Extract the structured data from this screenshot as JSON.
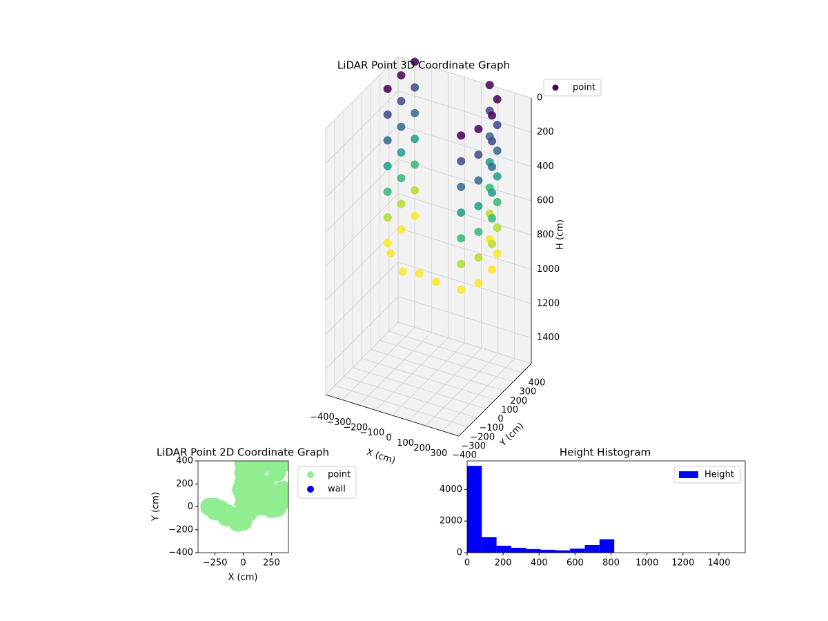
{
  "chart_data": [
    {
      "type": "scatter3d",
      "title": "LiDAR Point 3D Coordinate Graph",
      "x_label": "X (cm)",
      "y_label": "Y (cm)",
      "z_label": "H (cm)",
      "colormap": "viridis",
      "z_inverted": true,
      "legend": "upper right",
      "xlim": [
        -400,
        400
      ],
      "ylim": [
        -400,
        400
      ],
      "zlim": [
        0,
        1550
      ],
      "xticks": [
        {
          "value": -400,
          "label": "−400"
        },
        {
          "value": -300,
          "label": "−300"
        },
        {
          "value": -200,
          "label": "−200"
        },
        {
          "value": -100,
          "label": "−100"
        },
        0,
        100,
        200,
        300
      ],
      "yticks": [
        {
          "value": -400,
          "label": "−400"
        },
        {
          "value": -300,
          "label": "−300"
        },
        {
          "value": -200,
          "label": "−200"
        },
        {
          "value": -100,
          "label": "−100"
        },
        0,
        100,
        200,
        300,
        400
      ],
      "zticks": [
        0,
        200,
        400,
        600,
        800,
        1000,
        1200,
        1400
      ],
      "series": [
        {
          "name": "point",
          "color": "#440154",
          "x": [
            -300,
            -300,
            -300,
            -300,
            -300,
            -300,
            -300,
            -300,
            -300,
            -300,
            -300,
            -300,
            -300,
            -300,
            -300,
            -300,
            -300,
            -300,
            -300,
            -300,
            -300,
            150,
            150,
            150,
            150,
            150,
            150,
            150,
            250,
            250,
            250,
            250,
            250,
            250,
            250,
            300,
            300,
            300,
            300,
            300,
            300,
            300,
            300,
            300,
            300,
            300,
            300,
            300,
            300,
            250,
            250,
            250,
            250,
            250,
            250,
            250,
            -200,
            -100,
            0,
            100
          ],
          "y": [
            100,
            100,
            100,
            100,
            100,
            100,
            100,
            250,
            250,
            250,
            250,
            250,
            250,
            250,
            400,
            400,
            400,
            400,
            400,
            400,
            400,
            400,
            400,
            400,
            400,
            400,
            400,
            400,
            300,
            300,
            300,
            300,
            300,
            300,
            300,
            150,
            150,
            150,
            150,
            150,
            150,
            150,
            0,
            0,
            0,
            0,
            0,
            0,
            0,
            -100,
            -100,
            -100,
            -100,
            -100,
            -100,
            -100,
            -50,
            -100,
            -100,
            -100
          ],
          "values": [
            0,
            150,
            300,
            450,
            600,
            750,
            900,
            0,
            150,
            300,
            450,
            600,
            750,
            900,
            0,
            150,
            300,
            450,
            600,
            750,
            900,
            0,
            150,
            300,
            450,
            600,
            750,
            900,
            0,
            150,
            300,
            450,
            600,
            750,
            900,
            0,
            150,
            300,
            450,
            600,
            750,
            900,
            0,
            150,
            300,
            450,
            600,
            750,
            900,
            0,
            150,
            300,
            450,
            600,
            750,
            900,
            850,
            900,
            880,
            900
          ]
        }
      ]
    },
    {
      "type": "scatter",
      "title": "LiDAR Point 2D Coordinate Graph",
      "x_label": "X (cm)",
      "y_label": "Y (cm)",
      "legend": "outside right",
      "xlim": [
        -400,
        400
      ],
      "ylim": [
        -400,
        400
      ],
      "xticks": [
        {
          "value": -250,
          "label": "−250"
        },
        0,
        250
      ],
      "yticks": [
        {
          "value": -400,
          "label": "−400"
        },
        {
          "value": -200,
          "label": "−200"
        },
        0,
        200,
        400
      ],
      "series": [
        {
          "name": "point",
          "color": "#90ee90",
          "x": [
            -300,
            -250,
            -200,
            -150,
            -100,
            -50,
            0,
            -250,
            -150,
            -50,
            0,
            0,
            50,
            50,
            0,
            -20,
            0,
            0,
            0,
            50,
            100,
            150,
            200,
            250,
            300,
            100,
            150,
            200,
            250,
            300,
            350,
            350,
            100,
            250,
            350,
            300,
            200,
            100,
            50
          ],
          "values": [
            0,
            0,
            -20,
            -50,
            -80,
            -110,
            -130,
            -40,
            -90,
            -140,
            -60,
            20,
            -50,
            50,
            100,
            150,
            220,
            300,
            380,
            150,
            100,
            0,
            0,
            -20,
            -10,
            250,
            350,
            200,
            100,
            300,
            150,
            380,
            380,
            380,
            50,
            50,
            100,
            0,
            300
          ]
        },
        {
          "name": "wall",
          "color": "#0000ff",
          "x": [],
          "values": []
        }
      ]
    },
    {
      "type": "histogram",
      "title": "Height Histogram",
      "legend": "upper right",
      "xlim": [
        0,
        1546
      ],
      "ylim": [
        0,
        5800
      ],
      "xticks": [
        0,
        200,
        400,
        600,
        800,
        1000,
        1200,
        1400
      ],
      "yticks": [
        0,
        2000,
        4000
      ],
      "series": [
        {
          "name": "Height",
          "color": "#0000ff",
          "bins": [
            0,
            81.8,
            163.6,
            245.3,
            327.1,
            408.9,
            490.7,
            572.4,
            654.2,
            736,
            817.8,
            899.6,
            981.3,
            1063.1,
            1144.9,
            1226.7,
            1308.4,
            1390.2,
            1472
          ],
          "values": [
            5490,
            990,
            440,
            310,
            230,
            180,
            150,
            260,
            480,
            850,
            0,
            0,
            0,
            0,
            0,
            0,
            0,
            0
          ]
        }
      ]
    }
  ]
}
